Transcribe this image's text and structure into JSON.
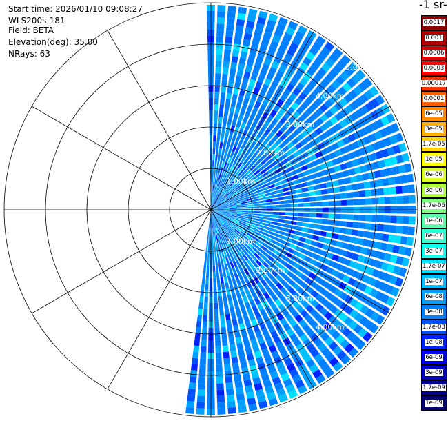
{
  "info": {
    "start_time": "Start time: 2026/01/10 09:08:27",
    "instrument": "WLS200s-181",
    "field": "Field: BETA",
    "elevation": "Elevation(deg): 35.00",
    "nrays": "NRays: 63"
  },
  "colorbar": {
    "unit_label": "-1 sr-",
    "levels": [
      {
        "label": "0.0017",
        "color": "#8b0000"
      },
      {
        "label": "0.001",
        "color": "#b00000"
      },
      {
        "label": "0.0006",
        "color": "#d80000"
      },
      {
        "label": "0.0003",
        "color": "#ff0000"
      },
      {
        "label": "0.00017",
        "color": "#ff3000"
      },
      {
        "label": "0.0001",
        "color": "#ff6000"
      },
      {
        "label": "6e-05",
        "color": "#ff8c00"
      },
      {
        "label": "3e-05",
        "color": "#ffae00"
      },
      {
        "label": "1.7e-05",
        "color": "#ffd200"
      },
      {
        "label": "1e-05",
        "color": "#ffff00"
      },
      {
        "label": "6e-06",
        "color": "#d8ff20"
      },
      {
        "label": "3e-06",
        "color": "#b0ff40"
      },
      {
        "label": "1.7e-06",
        "color": "#80ff80"
      },
      {
        "label": "1e-06",
        "color": "#55ffaa"
      },
      {
        "label": "6e-07",
        "color": "#30ffd0"
      },
      {
        "label": "3e-07",
        "color": "#10fff0"
      },
      {
        "label": "1.7e-07",
        "color": "#00e0ff"
      },
      {
        "label": "1e-07",
        "color": "#00c0ff"
      },
      {
        "label": "6e-08",
        "color": "#00a0ff"
      },
      {
        "label": "3e-08",
        "color": "#0080ff"
      },
      {
        "label": "1.7e-08",
        "color": "#0050ff"
      },
      {
        "label": "1e-08",
        "color": "#0020ff"
      },
      {
        "label": "6e-09",
        "color": "#0000ee"
      },
      {
        "label": "3e-09",
        "color": "#0000c0"
      },
      {
        "label": "1.7e-09",
        "color": "#000090"
      },
      {
        "label": "1e-09",
        "color": "#000070"
      }
    ]
  },
  "chart_data": {
    "type": "heatmap",
    "projection": "polar-ppi",
    "field": "BETA",
    "elevation_deg": 35.0,
    "nrays": 63,
    "azimuth_start_deg": 0,
    "azimuth_end_deg": 191,
    "azimuth_step_deg": 3,
    "range_max_km": 5.0,
    "range_rings_km": [
      1,
      2,
      3,
      4,
      5
    ],
    "range_ring_labels": [
      "1.00km",
      "2.00km",
      "3.00km",
      "4.00km",
      "5.00km"
    ],
    "spoke_angles_deg": [
      0,
      30,
      60,
      90,
      120,
      150,
      180,
      210,
      240,
      270,
      300,
      330
    ],
    "dominant_value": "3e-08",
    "value_range": [
      "1e-08",
      "1.7e-07"
    ],
    "grid": true
  }
}
